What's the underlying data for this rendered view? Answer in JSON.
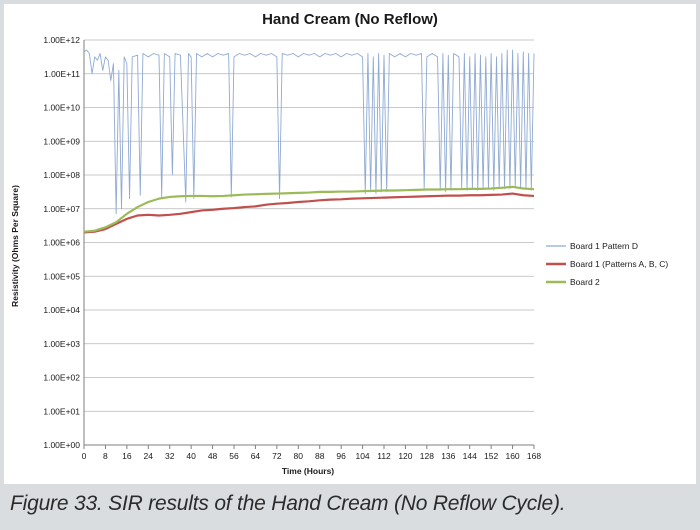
{
  "caption": "Figure 33. SIR results of the Hand Cream (No Reflow Cycle).",
  "chart_data": {
    "type": "line",
    "title": "Hand Cream (No Reflow)",
    "xlabel": "Time (Hours)",
    "ylabel": "Resistivity (Ohms Per Square)",
    "xlim": [
      0,
      168
    ],
    "ylim_log10": [
      0,
      12
    ],
    "y_scale": "log",
    "x_ticks": [
      0,
      8,
      16,
      24,
      32,
      40,
      48,
      56,
      64,
      72,
      80,
      88,
      96,
      104,
      112,
      120,
      128,
      136,
      144,
      152,
      160,
      168
    ],
    "y_tick_labels": [
      "1.00E+00",
      "1.00E+01",
      "1.00E+02",
      "1.00E+03",
      "1.00E+04",
      "1.00E+05",
      "1.00E+06",
      "1.00E+07",
      "1.00E+08",
      "1.00E+09",
      "1.00E+10",
      "1.00E+11",
      "1.00E+12"
    ],
    "grid": "horizontal",
    "legend_position": "right",
    "series": [
      {
        "name": "Board 1 Pattern D",
        "color": "#8faad4",
        "log10_values": [
          [
            0,
            11.65
          ],
          [
            1,
            11.7
          ],
          [
            2,
            11.6
          ],
          [
            3,
            11.0
          ],
          [
            4,
            11.5
          ],
          [
            5,
            11.4
          ],
          [
            6,
            11.6
          ],
          [
            7,
            11.1
          ],
          [
            8,
            11.5
          ],
          [
            9,
            11.4
          ],
          [
            10,
            10.8
          ],
          [
            11,
            11.3
          ],
          [
            12,
            6.85
          ],
          [
            13,
            11.1
          ],
          [
            14,
            7.0
          ],
          [
            15,
            11.5
          ],
          [
            16,
            11.3
          ],
          [
            17,
            7.3
          ],
          [
            18,
            11.5
          ],
          [
            20,
            11.55
          ],
          [
            21,
            7.4
          ],
          [
            22,
            11.6
          ],
          [
            24,
            11.5
          ],
          [
            26,
            11.6
          ],
          [
            28,
            11.55
          ],
          [
            29,
            7.35
          ],
          [
            30,
            11.6
          ],
          [
            32,
            11.5
          ],
          [
            33,
            8.0
          ],
          [
            34,
            11.6
          ],
          [
            36,
            11.55
          ],
          [
            38,
            7.2
          ],
          [
            39,
            11.6
          ],
          [
            40,
            11.5
          ],
          [
            41,
            7.3
          ],
          [
            42,
            11.6
          ],
          [
            44,
            11.5
          ],
          [
            46,
            11.6
          ],
          [
            48,
            11.5
          ],
          [
            50,
            11.6
          ],
          [
            52,
            11.55
          ],
          [
            54,
            11.6
          ],
          [
            55,
            7.35
          ],
          [
            56,
            11.5
          ],
          [
            58,
            11.6
          ],
          [
            60,
            11.55
          ],
          [
            62,
            11.6
          ],
          [
            64,
            11.5
          ],
          [
            66,
            11.6
          ],
          [
            68,
            11.55
          ],
          [
            70,
            11.6
          ],
          [
            72,
            11.5
          ],
          [
            73,
            7.3
          ],
          [
            74,
            11.6
          ],
          [
            76,
            11.55
          ],
          [
            78,
            11.6
          ],
          [
            80,
            11.5
          ],
          [
            82,
            11.6
          ],
          [
            84,
            11.55
          ],
          [
            86,
            11.6
          ],
          [
            88,
            11.5
          ],
          [
            90,
            11.6
          ],
          [
            92,
            11.55
          ],
          [
            94,
            11.6
          ],
          [
            96,
            11.5
          ],
          [
            98,
            11.6
          ],
          [
            100,
            11.55
          ],
          [
            102,
            11.6
          ],
          [
            104,
            11.5
          ],
          [
            105,
            7.45
          ],
          [
            106,
            11.6
          ],
          [
            107,
            7.5
          ],
          [
            108,
            11.5
          ],
          [
            109,
            7.45
          ],
          [
            110,
            11.6
          ],
          [
            111,
            7.5
          ],
          [
            112,
            11.55
          ],
          [
            113,
            7.5
          ],
          [
            114,
            11.6
          ],
          [
            116,
            11.5
          ],
          [
            118,
            11.6
          ],
          [
            120,
            11.5
          ],
          [
            122,
            11.6
          ],
          [
            124,
            11.55
          ],
          [
            126,
            11.6
          ],
          [
            127,
            7.6
          ],
          [
            128,
            11.5
          ],
          [
            130,
            11.6
          ],
          [
            132,
            11.5
          ],
          [
            133,
            7.55
          ],
          [
            134,
            11.6
          ],
          [
            135,
            7.5
          ],
          [
            136,
            11.55
          ],
          [
            137,
            7.55
          ],
          [
            138,
            11.6
          ],
          [
            140,
            11.5
          ],
          [
            141,
            7.6
          ],
          [
            142,
            11.6
          ],
          [
            143,
            7.55
          ],
          [
            144,
            11.5
          ],
          [
            145,
            7.6
          ],
          [
            146,
            11.6
          ],
          [
            147,
            7.55
          ],
          [
            148,
            11.55
          ],
          [
            149,
            7.6
          ],
          [
            150,
            11.5
          ],
          [
            151,
            7.6
          ],
          [
            152,
            11.6
          ],
          [
            153,
            7.55
          ],
          [
            154,
            11.5
          ],
          [
            155,
            7.6
          ],
          [
            156,
            11.6
          ],
          [
            157,
            7.6
          ],
          [
            158,
            11.7
          ],
          [
            159,
            7.6
          ],
          [
            160,
            11.7
          ],
          [
            161,
            7.65
          ],
          [
            162,
            11.6
          ],
          [
            163,
            7.6
          ],
          [
            164,
            11.65
          ],
          [
            165,
            7.6
          ],
          [
            166,
            11.6
          ],
          [
            167,
            7.55
          ],
          [
            168,
            11.6
          ]
        ]
      },
      {
        "name": "Board 1 (Patterns A, B, C)",
        "color": "#c0504d",
        "log10_values": [
          [
            0,
            6.3
          ],
          [
            4,
            6.32
          ],
          [
            8,
            6.4
          ],
          [
            12,
            6.55
          ],
          [
            16,
            6.7
          ],
          [
            20,
            6.8
          ],
          [
            24,
            6.82
          ],
          [
            28,
            6.8
          ],
          [
            32,
            6.82
          ],
          [
            36,
            6.85
          ],
          [
            40,
            6.9
          ],
          [
            44,
            6.95
          ],
          [
            48,
            6.97
          ],
          [
            52,
            7.0
          ],
          [
            56,
            7.02
          ],
          [
            60,
            7.05
          ],
          [
            64,
            7.07
          ],
          [
            68,
            7.12
          ],
          [
            72,
            7.15
          ],
          [
            76,
            7.17
          ],
          [
            80,
            7.2
          ],
          [
            84,
            7.22
          ],
          [
            88,
            7.25
          ],
          [
            92,
            7.27
          ],
          [
            96,
            7.28
          ],
          [
            100,
            7.3
          ],
          [
            104,
            7.31
          ],
          [
            108,
            7.32
          ],
          [
            112,
            7.33
          ],
          [
            116,
            7.34
          ],
          [
            120,
            7.35
          ],
          [
            124,
            7.36
          ],
          [
            128,
            7.37
          ],
          [
            132,
            7.38
          ],
          [
            136,
            7.39
          ],
          [
            140,
            7.39
          ],
          [
            144,
            7.4
          ],
          [
            148,
            7.4
          ],
          [
            152,
            7.41
          ],
          [
            156,
            7.42
          ],
          [
            160,
            7.45
          ],
          [
            164,
            7.4
          ],
          [
            168,
            7.38
          ]
        ]
      },
      {
        "name": "Board 2",
        "color": "#9bbb59",
        "log10_values": [
          [
            0,
            6.32
          ],
          [
            4,
            6.35
          ],
          [
            8,
            6.45
          ],
          [
            12,
            6.6
          ],
          [
            16,
            6.85
          ],
          [
            20,
            7.05
          ],
          [
            24,
            7.2
          ],
          [
            28,
            7.3
          ],
          [
            32,
            7.35
          ],
          [
            36,
            7.37
          ],
          [
            40,
            7.38
          ],
          [
            44,
            7.38
          ],
          [
            48,
            7.37
          ],
          [
            52,
            7.38
          ],
          [
            56,
            7.4
          ],
          [
            60,
            7.42
          ],
          [
            64,
            7.43
          ],
          [
            68,
            7.44
          ],
          [
            72,
            7.45
          ],
          [
            76,
            7.46
          ],
          [
            80,
            7.47
          ],
          [
            84,
            7.48
          ],
          [
            88,
            7.5
          ],
          [
            92,
            7.5
          ],
          [
            96,
            7.51
          ],
          [
            100,
            7.51
          ],
          [
            104,
            7.52
          ],
          [
            108,
            7.53
          ],
          [
            112,
            7.54
          ],
          [
            116,
            7.54
          ],
          [
            120,
            7.55
          ],
          [
            124,
            7.56
          ],
          [
            128,
            7.57
          ],
          [
            132,
            7.57
          ],
          [
            136,
            7.58
          ],
          [
            140,
            7.58
          ],
          [
            144,
            7.59
          ],
          [
            148,
            7.59
          ],
          [
            152,
            7.6
          ],
          [
            156,
            7.62
          ],
          [
            160,
            7.65
          ],
          [
            164,
            7.6
          ],
          [
            168,
            7.58
          ]
        ]
      }
    ]
  }
}
